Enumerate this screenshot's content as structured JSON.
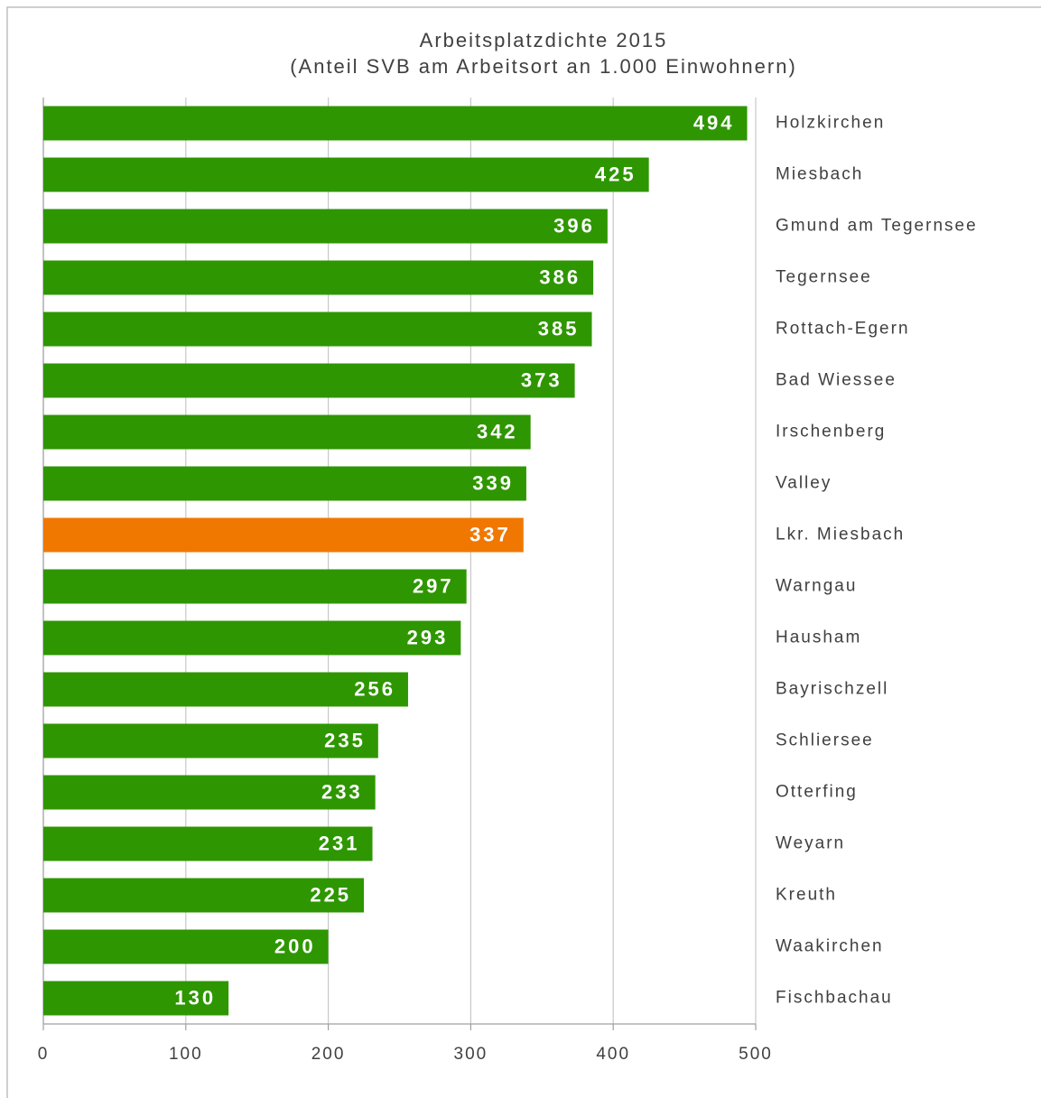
{
  "chart_data": {
    "type": "bar",
    "orientation": "horizontal",
    "title": "Arbeitsplatzdichte 2015",
    "subtitle": "(Anteil SVB am Arbeitsort an 1.000 Einwohnern)",
    "categories": [
      "Holzkirchen",
      "Miesbach",
      "Gmund am Tegernsee",
      "Tegernsee",
      "Rottach-Egern",
      "Bad Wiessee",
      "Irschenberg",
      "Valley",
      "Lkr. Miesbach",
      "Warngau",
      "Hausham",
      "Bayrischzell",
      "Schliersee",
      "Otterfing",
      "Weyarn",
      "Kreuth",
      "Waakirchen",
      "Fischbachau"
    ],
    "values": [
      494,
      425,
      396,
      386,
      385,
      373,
      342,
      339,
      337,
      297,
      293,
      256,
      235,
      233,
      231,
      225,
      200,
      130
    ],
    "colors": [
      "#2e9600",
      "#2e9600",
      "#2e9600",
      "#2e9600",
      "#2e9600",
      "#2e9600",
      "#2e9600",
      "#2e9600",
      "#f07800",
      "#2e9600",
      "#2e9600",
      "#2e9600",
      "#2e9600",
      "#2e9600",
      "#2e9600",
      "#2e9600",
      "#2e9600",
      "#2e9600"
    ],
    "xlim": [
      0,
      500
    ],
    "xticks": [
      0,
      100,
      200,
      300,
      400,
      500
    ],
    "grid": true
  }
}
